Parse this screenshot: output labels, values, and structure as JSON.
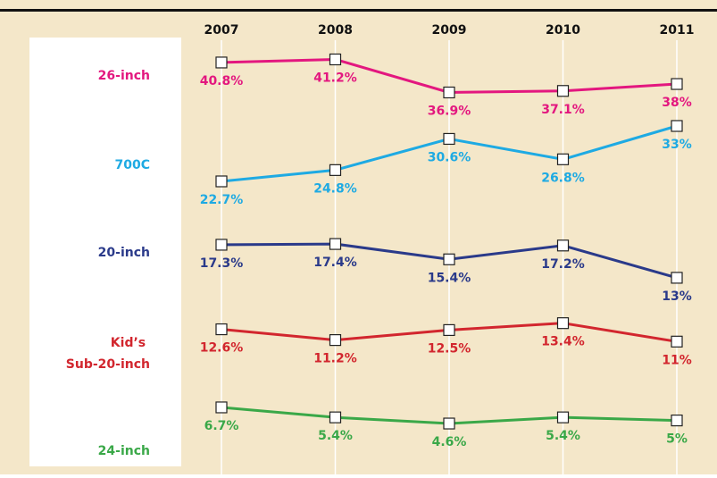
{
  "chart_data": {
    "type": "line",
    "categories": [
      "2007",
      "2008",
      "2009",
      "2010",
      "2011"
    ],
    "series": [
      {
        "name": "26-inch",
        "color": "#e3177f",
        "values": [
          40.8,
          41.2,
          36.9,
          37.1,
          38
        ],
        "value_labels": [
          "40.8%",
          "41.2%",
          "36.9%",
          "37.1%",
          "38%"
        ]
      },
      {
        "name": "700C",
        "color": "#1eaae3",
        "values": [
          22.7,
          24.8,
          30.6,
          26.8,
          33
        ],
        "value_labels": [
          "22.7%",
          "24.8%",
          "30.6%",
          "26.8%",
          "33%"
        ]
      },
      {
        "name": "20-inch",
        "color": "#2a3a8a",
        "values": [
          17.3,
          17.4,
          15.4,
          17.2,
          13
        ],
        "value_labels": [
          "17.3%",
          "17.4%",
          "15.4%",
          "17.2%",
          "13%"
        ]
      },
      {
        "name": "Kid’s Sub-20-inch",
        "color": "#d2262e",
        "values": [
          12.6,
          11.2,
          12.5,
          13.4,
          11
        ],
        "value_labels": [
          "12.6%",
          "11.2%",
          "12.5%",
          "13.4%",
          "11%"
        ]
      },
      {
        "name": "24-inch",
        "color": "#3aa848",
        "values": [
          6.7,
          5.4,
          4.6,
          5.4,
          5
        ],
        "value_labels": [
          "6.7%",
          "5.4%",
          "4.6%",
          "5.4%",
          "5%"
        ]
      }
    ]
  }
}
